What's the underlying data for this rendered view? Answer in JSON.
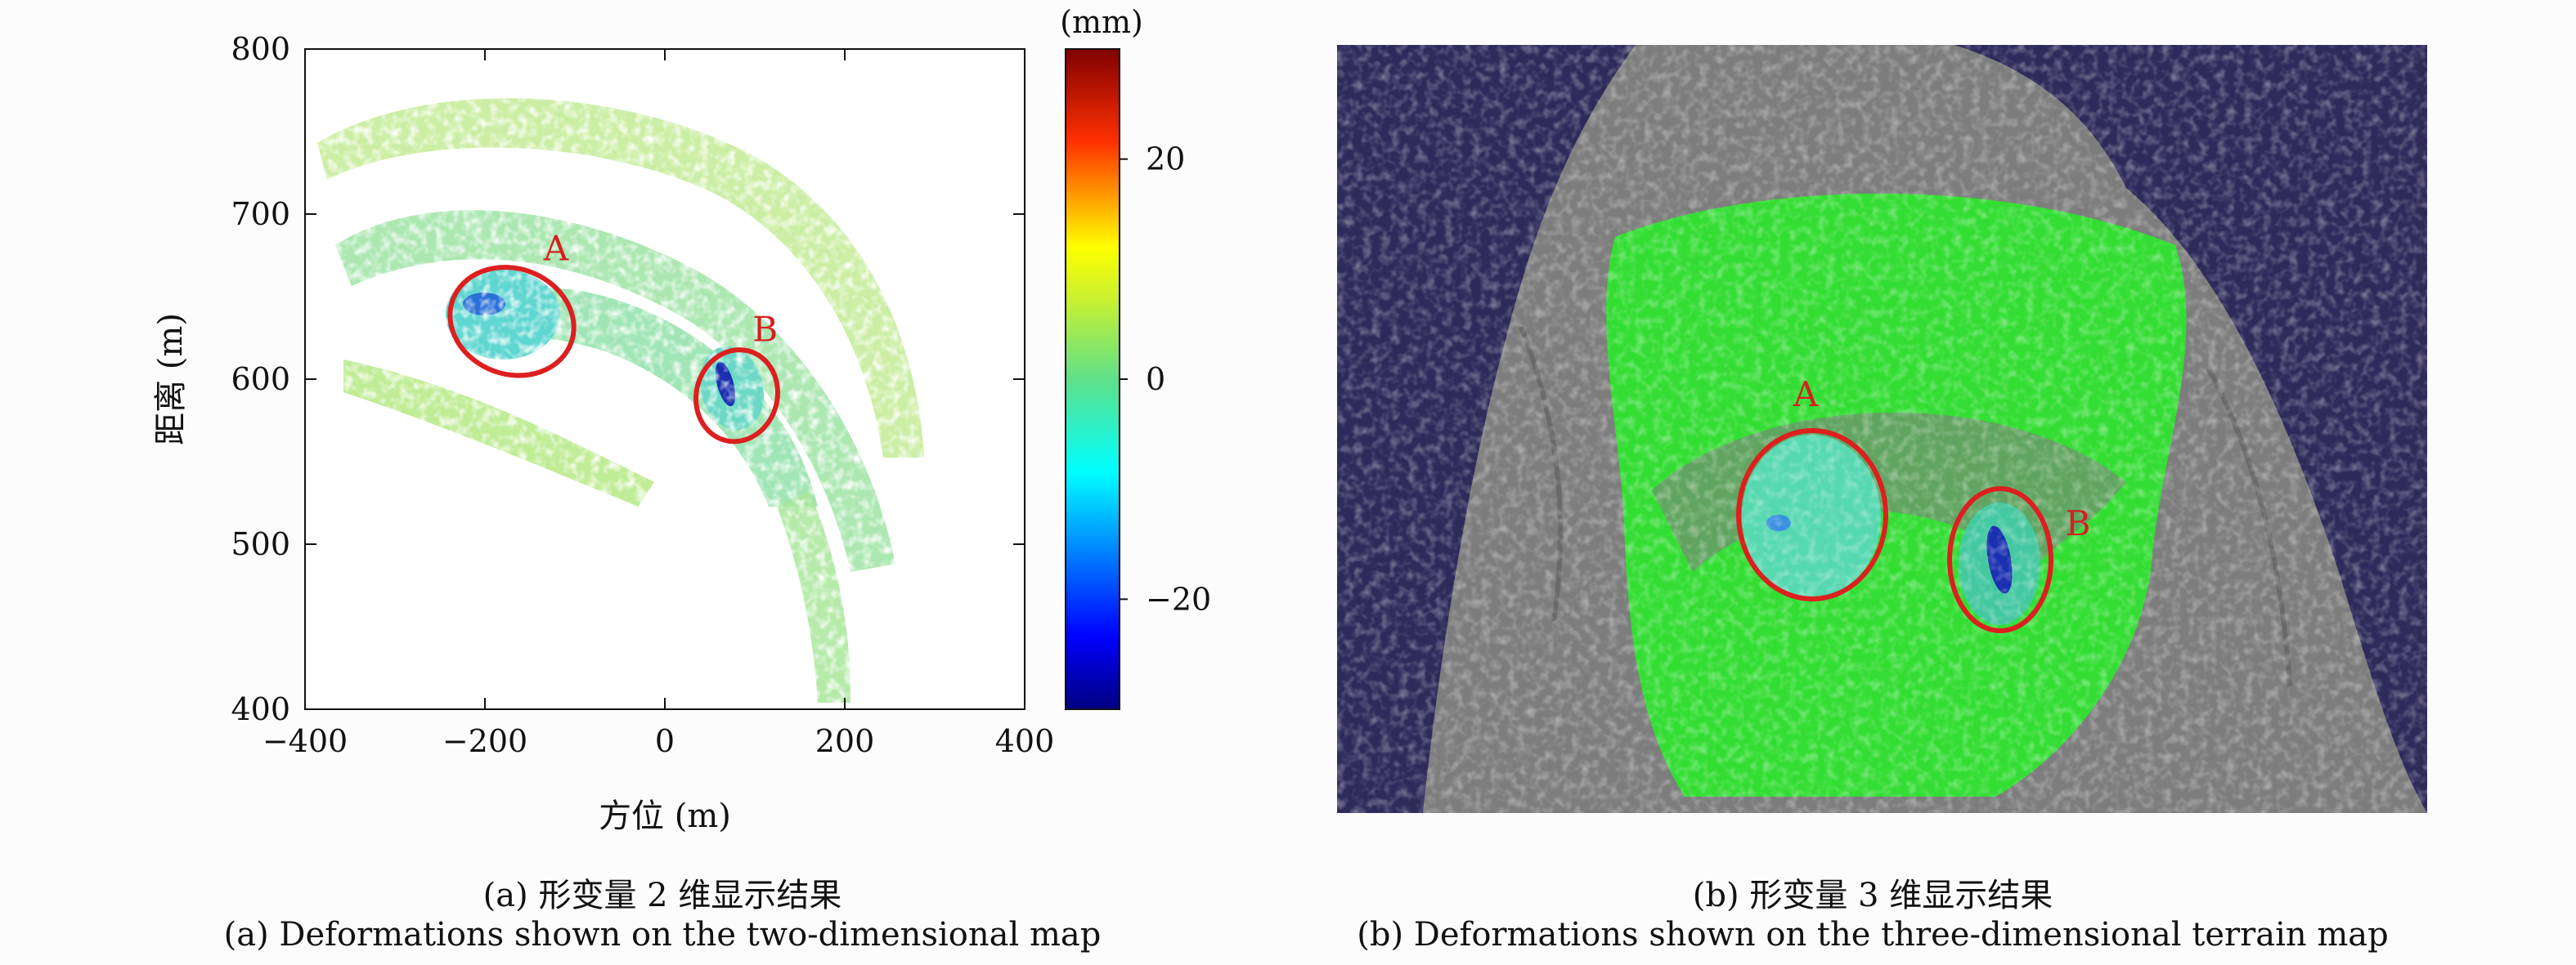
{
  "panel_a": {
    "caption_zh": "(a) 形变量 2 维显示结果",
    "caption_en": "(a) Deformations shown on the two-dimensional map"
  },
  "panel_b": {
    "caption_zh": "(b) 形变量 3 维显示结果",
    "caption_en": "(b) Deformations shown on the three-dimensional terrain map",
    "annotations": [
      "A",
      "B"
    ],
    "colors": {
      "background": "#2e2a5a",
      "terrain": "#7d7d7d",
      "deformation": "#33dd33"
    }
  },
  "chart_data": {
    "type": "heatmap",
    "xlabel": "方位 (m)",
    "ylabel": "距离 (m)",
    "xlim": [
      -400,
      400
    ],
    "ylim": [
      400,
      800
    ],
    "xticks": [
      -400,
      -200,
      0,
      200,
      400
    ],
    "yticks": [
      400,
      500,
      600,
      700,
      800
    ],
    "xtick_labels": [
      "−400",
      "−200",
      "0",
      "200",
      "400"
    ],
    "ytick_labels": [
      "400",
      "500",
      "600",
      "700",
      "800"
    ],
    "colorbar": {
      "unit": "(mm)",
      "range": [
        -30,
        30
      ],
      "ticks": [
        20,
        0,
        -20
      ],
      "tick_labels": [
        "20",
        "0",
        "−20"
      ],
      "colormap": "jet"
    },
    "annotations": [
      {
        "label": "A",
        "cx": -170,
        "cy": 635,
        "rx": 70,
        "ry": 32
      },
      {
        "label": "B",
        "cx": 80,
        "cy": 590,
        "rx": 45,
        "ry": 28
      }
    ],
    "grid": false
  }
}
